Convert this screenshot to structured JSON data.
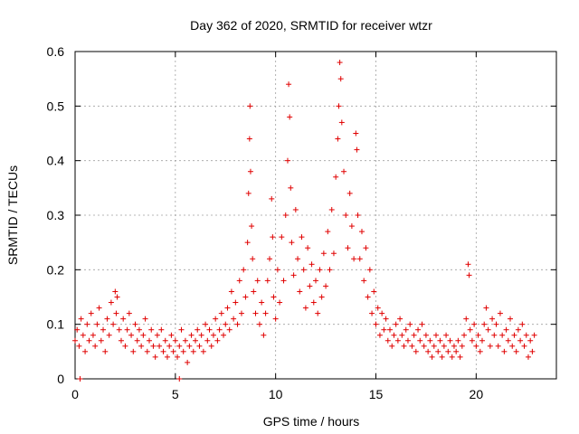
{
  "chart_data": {
    "type": "scatter",
    "title": "Day 362 of 2020, SRMTID for receiver wtzr",
    "xlabel": "GPS time / hours",
    "ylabel": "SRMTID / TECUs",
    "xlim": [
      0,
      24
    ],
    "ylim": [
      0,
      0.6
    ],
    "xticks": [
      0,
      5,
      10,
      15,
      20
    ],
    "yticks": [
      0,
      0.1,
      0.2,
      0.3,
      0.4,
      0.5,
      0.6
    ],
    "xtick_labels": [
      "0",
      "5",
      "10",
      "15",
      "20"
    ],
    "ytick_labels": [
      "0",
      "0.1",
      "0.2",
      "0.3",
      "0.4",
      "0.5",
      "0.6"
    ],
    "grid": true,
    "marker": "+",
    "color": "#e00000",
    "series": [
      {
        "name": "SRMTID",
        "points": [
          [
            0.0,
            0.07
          ],
          [
            0.1,
            0.09
          ],
          [
            0.2,
            0.06
          ],
          [
            0.3,
            0.11
          ],
          [
            0.4,
            0.08
          ],
          [
            0.5,
            0.05
          ],
          [
            0.6,
            0.1
          ],
          [
            0.7,
            0.07
          ],
          [
            0.8,
            0.12
          ],
          [
            0.9,
            0.08
          ],
          [
            1.0,
            0.06
          ],
          [
            1.1,
            0.1
          ],
          [
            1.2,
            0.13
          ],
          [
            1.3,
            0.07
          ],
          [
            1.4,
            0.09
          ],
          [
            1.5,
            0.05
          ],
          [
            1.6,
            0.11
          ],
          [
            1.7,
            0.08
          ],
          [
            1.8,
            0.14
          ],
          [
            1.9,
            0.1
          ],
          [
            2.0,
            0.16
          ],
          [
            2.05,
            0.12
          ],
          [
            2.1,
            0.15
          ],
          [
            2.2,
            0.09
          ],
          [
            2.3,
            0.07
          ],
          [
            2.4,
            0.11
          ],
          [
            2.5,
            0.06
          ],
          [
            2.6,
            0.09
          ],
          [
            2.7,
            0.12
          ],
          [
            2.8,
            0.08
          ],
          [
            2.9,
            0.05
          ],
          [
            3.0,
            0.1
          ],
          [
            3.1,
            0.07
          ],
          [
            3.2,
            0.09
          ],
          [
            3.3,
            0.06
          ],
          [
            3.4,
            0.08
          ],
          [
            3.5,
            0.11
          ],
          [
            3.6,
            0.05
          ],
          [
            3.7,
            0.07
          ],
          [
            3.8,
            0.09
          ],
          [
            3.9,
            0.06
          ],
          [
            4.0,
            0.04
          ],
          [
            4.1,
            0.08
          ],
          [
            4.2,
            0.06
          ],
          [
            4.3,
            0.09
          ],
          [
            4.4,
            0.05
          ],
          [
            4.5,
            0.07
          ],
          [
            4.6,
            0.04
          ],
          [
            4.7,
            0.06
          ],
          [
            4.8,
            0.08
          ],
          [
            4.9,
            0.05
          ],
          [
            5.0,
            0.07
          ],
          [
            5.1,
            0.04
          ],
          [
            5.2,
            0.06
          ],
          [
            5.3,
            0.09
          ],
          [
            5.4,
            0.05
          ],
          [
            5.5,
            0.07
          ],
          [
            5.6,
            0.03
          ],
          [
            5.7,
            0.06
          ],
          [
            5.8,
            0.08
          ],
          [
            5.9,
            0.05
          ],
          [
            6.0,
            0.07
          ],
          [
            6.1,
            0.09
          ],
          [
            6.2,
            0.06
          ],
          [
            6.3,
            0.08
          ],
          [
            6.4,
            0.05
          ],
          [
            6.5,
            0.1
          ],
          [
            6.6,
            0.07
          ],
          [
            6.7,
            0.09
          ],
          [
            6.8,
            0.06
          ],
          [
            6.9,
            0.08
          ],
          [
            7.0,
            0.11
          ],
          [
            7.1,
            0.07
          ],
          [
            7.2,
            0.09
          ],
          [
            7.3,
            0.12
          ],
          [
            7.4,
            0.08
          ],
          [
            7.5,
            0.1
          ],
          [
            7.6,
            0.13
          ],
          [
            7.7,
            0.09
          ],
          [
            7.8,
            0.16
          ],
          [
            7.9,
            0.11
          ],
          [
            8.0,
            0.14
          ],
          [
            8.1,
            0.1
          ],
          [
            8.2,
            0.18
          ],
          [
            8.3,
            0.12
          ],
          [
            8.4,
            0.2
          ],
          [
            8.5,
            0.15
          ],
          [
            8.6,
            0.25
          ],
          [
            8.65,
            0.34
          ],
          [
            8.7,
            0.44
          ],
          [
            8.72,
            0.5
          ],
          [
            8.75,
            0.38
          ],
          [
            8.8,
            0.28
          ],
          [
            8.85,
            0.22
          ],
          [
            8.9,
            0.16
          ],
          [
            9.0,
            0.12
          ],
          [
            9.1,
            0.18
          ],
          [
            9.2,
            0.1
          ],
          [
            9.3,
            0.14
          ],
          [
            9.4,
            0.08
          ],
          [
            9.5,
            0.12
          ],
          [
            9.6,
            0.18
          ],
          [
            9.7,
            0.22
          ],
          [
            9.8,
            0.33
          ],
          [
            9.85,
            0.26
          ],
          [
            9.9,
            0.15
          ],
          [
            10.0,
            0.11
          ],
          [
            10.1,
            0.2
          ],
          [
            10.2,
            0.14
          ],
          [
            10.3,
            0.26
          ],
          [
            10.4,
            0.18
          ],
          [
            10.5,
            0.3
          ],
          [
            10.6,
            0.4
          ],
          [
            10.65,
            0.54
          ],
          [
            10.7,
            0.48
          ],
          [
            10.75,
            0.35
          ],
          [
            10.8,
            0.25
          ],
          [
            10.9,
            0.19
          ],
          [
            11.0,
            0.31
          ],
          [
            11.1,
            0.22
          ],
          [
            11.2,
            0.16
          ],
          [
            11.3,
            0.26
          ],
          [
            11.4,
            0.2
          ],
          [
            11.5,
            0.13
          ],
          [
            11.6,
            0.24
          ],
          [
            11.7,
            0.17
          ],
          [
            11.8,
            0.21
          ],
          [
            11.9,
            0.14
          ],
          [
            12.0,
            0.18
          ],
          [
            12.1,
            0.12
          ],
          [
            12.2,
            0.2
          ],
          [
            12.3,
            0.15
          ],
          [
            12.4,
            0.23
          ],
          [
            12.5,
            0.17
          ],
          [
            12.6,
            0.27
          ],
          [
            12.7,
            0.2
          ],
          [
            12.8,
            0.31
          ],
          [
            12.9,
            0.23
          ],
          [
            13.0,
            0.37
          ],
          [
            13.1,
            0.44
          ],
          [
            13.15,
            0.5
          ],
          [
            13.2,
            0.58
          ],
          [
            13.25,
            0.55
          ],
          [
            13.3,
            0.47
          ],
          [
            13.4,
            0.38
          ],
          [
            13.5,
            0.3
          ],
          [
            13.6,
            0.24
          ],
          [
            13.7,
            0.34
          ],
          [
            13.8,
            0.28
          ],
          [
            13.9,
            0.22
          ],
          [
            14.0,
            0.45
          ],
          [
            14.05,
            0.42
          ],
          [
            14.1,
            0.3
          ],
          [
            14.2,
            0.22
          ],
          [
            14.3,
            0.27
          ],
          [
            14.4,
            0.18
          ],
          [
            14.5,
            0.24
          ],
          [
            14.6,
            0.15
          ],
          [
            14.7,
            0.2
          ],
          [
            14.8,
            0.12
          ],
          [
            14.9,
            0.16
          ],
          [
            15.0,
            0.1
          ],
          [
            15.1,
            0.13
          ],
          [
            15.2,
            0.08
          ],
          [
            15.3,
            0.12
          ],
          [
            15.4,
            0.09
          ],
          [
            15.5,
            0.11
          ],
          [
            15.6,
            0.07
          ],
          [
            15.7,
            0.09
          ],
          [
            15.8,
            0.06
          ],
          [
            15.9,
            0.08
          ],
          [
            16.0,
            0.1
          ],
          [
            16.1,
            0.07
          ],
          [
            16.2,
            0.11
          ],
          [
            16.3,
            0.08
          ],
          [
            16.4,
            0.06
          ],
          [
            16.5,
            0.09
          ],
          [
            16.6,
            0.07
          ],
          [
            16.7,
            0.1
          ],
          [
            16.8,
            0.06
          ],
          [
            16.9,
            0.08
          ],
          [
            17.0,
            0.05
          ],
          [
            17.1,
            0.09
          ],
          [
            17.2,
            0.07
          ],
          [
            17.3,
            0.1
          ],
          [
            17.4,
            0.06
          ],
          [
            17.5,
            0.08
          ],
          [
            17.6,
            0.05
          ],
          [
            17.7,
            0.07
          ],
          [
            17.8,
            0.04
          ],
          [
            17.9,
            0.06
          ],
          [
            18.0,
            0.08
          ],
          [
            18.1,
            0.05
          ],
          [
            18.2,
            0.07
          ],
          [
            18.3,
            0.04
          ],
          [
            18.4,
            0.06
          ],
          [
            18.5,
            0.08
          ],
          [
            18.6,
            0.05
          ],
          [
            18.7,
            0.07
          ],
          [
            18.8,
            0.04
          ],
          [
            18.9,
            0.06
          ],
          [
            19.0,
            0.05
          ],
          [
            19.1,
            0.07
          ],
          [
            19.2,
            0.04
          ],
          [
            19.3,
            0.06
          ],
          [
            19.4,
            0.08
          ],
          [
            19.5,
            0.11
          ],
          [
            19.6,
            0.21
          ],
          [
            19.65,
            0.19
          ],
          [
            19.7,
            0.09
          ],
          [
            19.8,
            0.07
          ],
          [
            19.9,
            0.1
          ],
          [
            20.0,
            0.06
          ],
          [
            20.1,
            0.08
          ],
          [
            20.2,
            0.05
          ],
          [
            20.3,
            0.07
          ],
          [
            20.4,
            0.1
          ],
          [
            20.5,
            0.13
          ],
          [
            20.6,
            0.09
          ],
          [
            20.7,
            0.06
          ],
          [
            20.8,
            0.11
          ],
          [
            20.9,
            0.08
          ],
          [
            21.0,
            0.1
          ],
          [
            21.1,
            0.06
          ],
          [
            21.2,
            0.12
          ],
          [
            21.3,
            0.08
          ],
          [
            21.4,
            0.05
          ],
          [
            21.5,
            0.09
          ],
          [
            21.6,
            0.07
          ],
          [
            21.7,
            0.11
          ],
          [
            21.8,
            0.06
          ],
          [
            21.9,
            0.08
          ],
          [
            22.0,
            0.05
          ],
          [
            22.1,
            0.09
          ],
          [
            22.2,
            0.07
          ],
          [
            22.3,
            0.1
          ],
          [
            22.4,
            0.06
          ],
          [
            22.5,
            0.08
          ],
          [
            22.6,
            0.04
          ],
          [
            22.7,
            0.07
          ],
          [
            22.8,
            0.05
          ],
          [
            22.9,
            0.08
          ],
          [
            0.25,
            0.0
          ],
          [
            5.2,
            0.0
          ]
        ]
      }
    ]
  }
}
